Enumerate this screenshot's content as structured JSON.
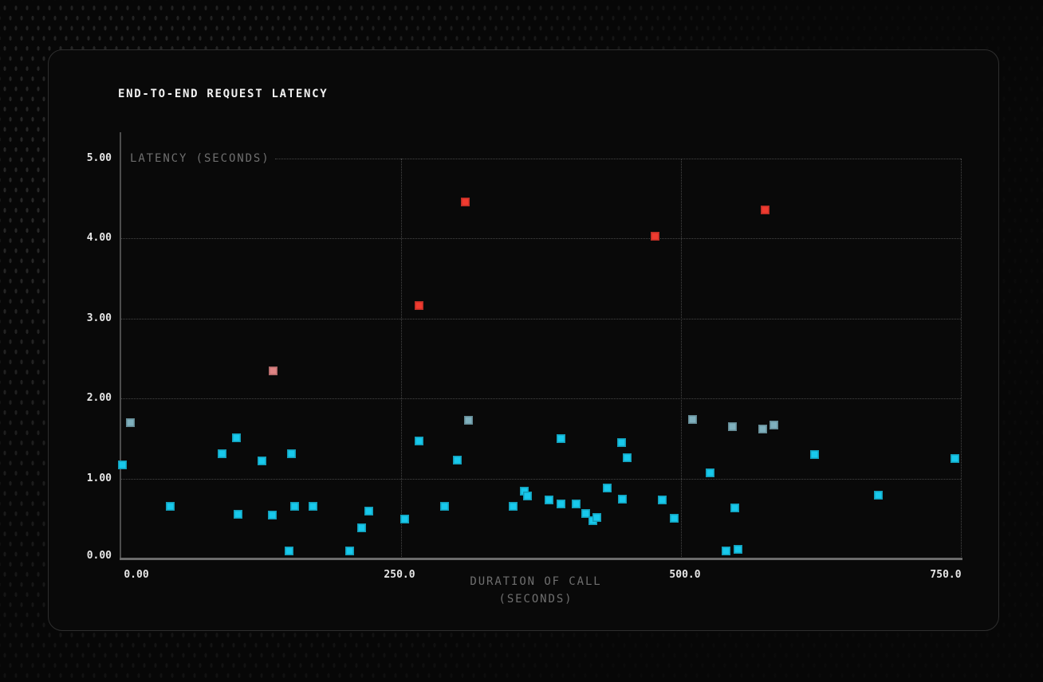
{
  "colors": {
    "background": "#070707",
    "panel": "#090909",
    "panel_border": "#2e2e2e",
    "grid": "#474747",
    "axis": "#6b6b6b",
    "tick_text": "#e6e6e6",
    "label_text": "#6f6f6f",
    "title_text": "#f2f2f2",
    "point_normal": "#18c9ec",
    "point_muted": "#7fb0bd",
    "point_elevated": "#df8484",
    "point_alert": "#f03b30"
  },
  "chart_data": {
    "type": "scatter",
    "title": "END-TO-END REQUEST LATENCY",
    "ylabel": "LATENCY (SECONDS)",
    "xlabel_lines": [
      "DURATION OF CALL",
      "(SECONDS)"
    ],
    "xlabel": "DURATION OF CALL (SECONDS)",
    "xlim": [
      0,
      750
    ],
    "ylim": [
      0,
      5
    ],
    "x_tick_labels": [
      "0.00",
      "250.0",
      "500.0",
      "750.0"
    ],
    "y_tick_labels": [
      "5.00",
      "4.00",
      "3.00",
      "2.00",
      "1.00",
      "0.00"
    ],
    "grid": "dotted",
    "legend": "none",
    "marker": "square",
    "series": [
      {
        "name": "normal",
        "color": "#18c9ec",
        "points": [
          [
            1,
            1.17
          ],
          [
            44,
            0.65
          ],
          [
            90,
            1.31
          ],
          [
            103,
            1.51
          ],
          [
            104,
            0.55
          ],
          [
            126,
            1.22
          ],
          [
            135,
            0.54
          ],
          [
            150,
            0.09
          ],
          [
            152,
            1.31
          ],
          [
            155,
            0.65
          ],
          [
            171,
            0.65
          ],
          [
            204,
            0.09
          ],
          [
            215,
            0.38
          ],
          [
            221,
            0.59
          ],
          [
            253,
            0.49
          ],
          [
            266,
            1.47
          ],
          [
            289,
            0.65
          ],
          [
            300,
            1.23
          ],
          [
            350,
            0.65
          ],
          [
            360,
            0.84
          ],
          [
            363,
            0.78
          ],
          [
            382,
            0.73
          ],
          [
            393,
            1.5
          ],
          [
            393,
            0.68
          ],
          [
            406,
            0.68
          ],
          [
            415,
            0.56
          ],
          [
            421,
            0.47
          ],
          [
            425,
            0.51
          ],
          [
            434,
            0.88
          ],
          [
            447,
            1.45
          ],
          [
            448,
            0.74
          ],
          [
            452,
            1.26
          ],
          [
            483,
            0.73
          ],
          [
            494,
            0.5
          ],
          [
            526,
            1.07
          ],
          [
            540,
            0.09
          ],
          [
            548,
            0.63
          ],
          [
            551,
            0.11
          ],
          [
            619,
            1.3
          ],
          [
            676,
            0.79
          ],
          [
            745,
            1.25
          ]
        ]
      },
      {
        "name": "muted",
        "color": "#7fb0bd",
        "points": [
          [
            8,
            1.7
          ],
          [
            310,
            1.73
          ],
          [
            510,
            1.74
          ],
          [
            546,
            1.65
          ],
          [
            573,
            1.62
          ],
          [
            583,
            1.67
          ]
        ]
      },
      {
        "name": "elevated",
        "color": "#df8484",
        "points": [
          [
            136,
            2.35
          ]
        ]
      },
      {
        "name": "alert",
        "color": "#f03b30",
        "points": [
          [
            266,
            3.16
          ],
          [
            307,
            4.46
          ],
          [
            477,
            4.03
          ],
          [
            575,
            4.36
          ]
        ]
      }
    ]
  }
}
